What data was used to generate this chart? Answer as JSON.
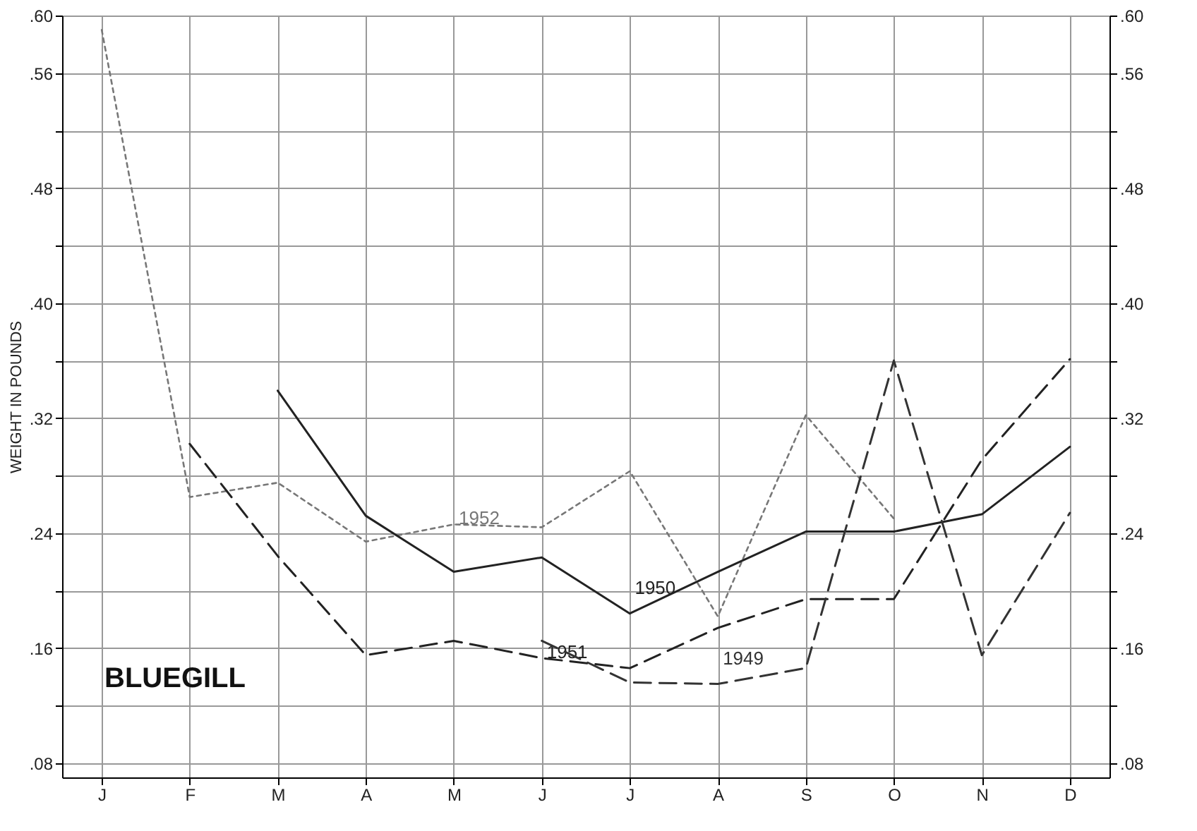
{
  "chart_data": {
    "type": "line",
    "ylabel": "WEIGHT IN POUNDS",
    "categories": [
      "J",
      "F",
      "M",
      "A",
      "M",
      "J",
      "J",
      "A",
      "S",
      "O",
      "N",
      "D"
    ],
    "series": [
      {
        "name": "1952",
        "color": "#777777",
        "line_style": "dotted",
        "values": [
          0.59,
          0.265,
          0.275,
          0.234,
          0.246,
          0.244,
          0.283,
          0.182,
          0.322,
          0.25,
          null,
          null
        ]
      },
      {
        "name": "1950",
        "color": "#222222",
        "line_style": "solid",
        "values": [
          null,
          null,
          0.339,
          0.252,
          0.213,
          0.223,
          0.184,
          0.213,
          0.241,
          0.241,
          0.253,
          0.3
        ]
      },
      {
        "name": "1951",
        "color": "#222222",
        "line_style": "dashed",
        "values": [
          null,
          0.302,
          0.224,
          0.155,
          0.165,
          0.153,
          0.146,
          0.174,
          0.194,
          0.194,
          0.291,
          0.361
        ]
      },
      {
        "name": "1949",
        "color": "#333333",
        "line_style": "dashed",
        "values": [
          null,
          null,
          null,
          null,
          null,
          0.165,
          0.136,
          0.135,
          0.146,
          0.36,
          0.155,
          0.254
        ]
      }
    ],
    "ylim": [
      0.07,
      0.6
    ],
    "yticks": [
      {
        "value": 0.08,
        "label": ".08"
      },
      {
        "value": 0.12,
        "label": null
      },
      {
        "value": 0.16,
        "label": ".16"
      },
      {
        "value": 0.2,
        "label": null
      },
      {
        "value": 0.24,
        "label": ".24"
      },
      {
        "value": 0.28,
        "label": null
      },
      {
        "value": 0.32,
        "label": ".32"
      },
      {
        "value": 0.36,
        "label": null
      },
      {
        "value": 0.4,
        "label": ".40"
      },
      {
        "value": 0.44,
        "label": null
      },
      {
        "value": 0.48,
        "label": ".48"
      },
      {
        "value": 0.52,
        "label": null
      },
      {
        "value": 0.56,
        "label": ".56"
      },
      {
        "value": 0.6,
        "label": ".60"
      }
    ],
    "y2lim": [
      0.07,
      0.6
    ],
    "y2ticks": [
      {
        "value": 0.08,
        "label": ".08"
      },
      {
        "value": 0.12,
        "label": null
      },
      {
        "value": 0.16,
        "label": ".16"
      },
      {
        "value": 0.2,
        "label": null
      },
      {
        "value": 0.24,
        "label": ".24"
      },
      {
        "value": 0.28,
        "label": null
      },
      {
        "value": 0.32,
        "label": ".32"
      },
      {
        "value": 0.36,
        "label": null
      },
      {
        "value": 0.4,
        "label": ".40"
      },
      {
        "value": 0.44,
        "label": null
      },
      {
        "value": 0.48,
        "label": ".48"
      },
      {
        "value": 0.52,
        "label": null
      },
      {
        "value": 0.56,
        "label": ".56"
      },
      {
        "value": 0.6,
        "label": ".60"
      }
    ],
    "annotations": [
      "BLUEGILL"
    ],
    "grid": true,
    "legend": false
  }
}
